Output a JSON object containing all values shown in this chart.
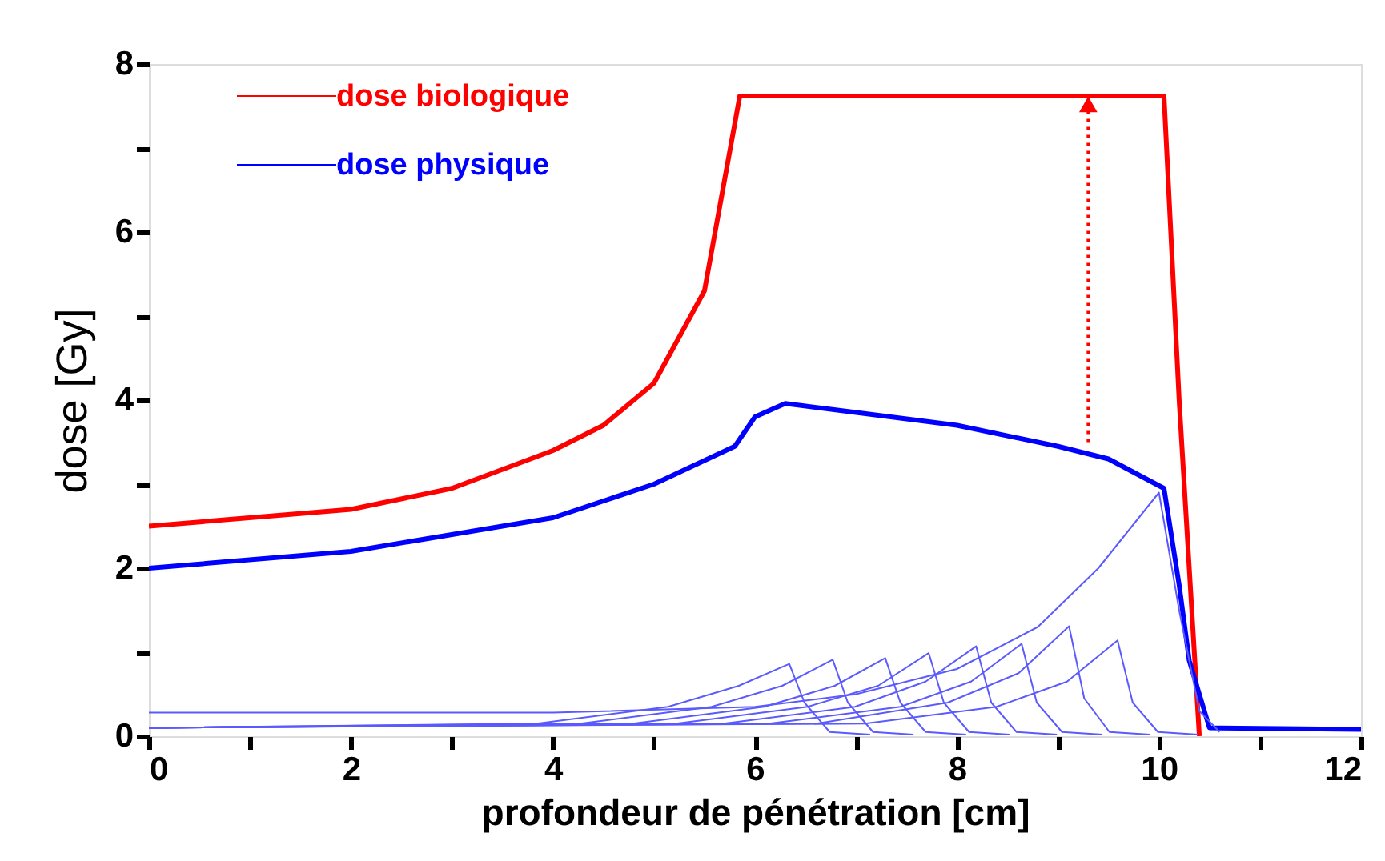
{
  "chart_data": {
    "type": "line",
    "xlabel": "profondeur de pénétration [cm]",
    "ylabel": "dose [Gy]",
    "xlim": [
      0,
      12
    ],
    "ylim": [
      0,
      8
    ],
    "xticks": [
      0,
      {
        "value": 1,
        "label": null
      },
      2,
      {
        "value": 3,
        "label": null
      },
      4,
      {
        "value": 5,
        "label": null
      },
      6,
      {
        "value": 7,
        "label": null
      },
      8,
      {
        "value": 9,
        "label": null
      },
      10,
      {
        "value": 11,
        "label": null
      },
      12
    ],
    "yticks": [
      0,
      {
        "value": 1,
        "label": null
      },
      2,
      {
        "value": 3,
        "label": null
      },
      4,
      {
        "value": 5,
        "label": null
      },
      6,
      {
        "value": 7,
        "label": null
      },
      8
    ],
    "grid": false,
    "legend": "top left",
    "series": [
      {
        "name": "dose biologique",
        "color": "#ff0000",
        "x": [
          0,
          2,
          3,
          4,
          4.5,
          5,
          5.5,
          5.85,
          10.05,
          10.2,
          10.4
        ],
        "values": [
          2.5,
          2.7,
          2.95,
          3.4,
          3.7,
          4.2,
          5.3,
          7.62,
          7.62,
          4.0,
          0
        ]
      },
      {
        "name": "dose physique",
        "color": "#0000ff",
        "x": [
          0,
          2,
          4,
          5,
          5.8,
          6.0,
          6.3,
          8,
          9,
          9.5,
          10.05,
          10.2,
          10.3,
          10.5,
          12
        ],
        "values": [
          2.0,
          2.2,
          2.6,
          3.0,
          3.45,
          3.8,
          3.96,
          3.7,
          3.45,
          3.3,
          2.95,
          1.8,
          0.9,
          0.1,
          0.08
        ]
      },
      {
        "color": "#5a5aff",
        "x": [
          0,
          3.84,
          5.14,
          5.84,
          6.34,
          6.49,
          6.74,
          7.14
        ],
        "values": [
          0.1,
          0.15,
          0.35,
          0.6,
          0.86,
          0.4,
          0.05,
          0.02
        ]
      },
      {
        "color": "#5a5aff",
        "x": [
          0,
          4.27,
          5.57,
          6.27,
          6.77,
          6.92,
          7.17,
          7.57
        ],
        "values": [
          0.1,
          0.15,
          0.35,
          0.6,
          0.91,
          0.4,
          0.05,
          0.02
        ]
      },
      {
        "color": "#5a5aff",
        "x": [
          0,
          4.79,
          6.09,
          6.79,
          7.29,
          7.44,
          7.69,
          8.09
        ],
        "values": [
          0.1,
          0.15,
          0.35,
          0.6,
          0.93,
          0.4,
          0.05,
          0.02
        ]
      },
      {
        "color": "#5a5aff",
        "x": [
          0,
          5.22,
          6.52,
          7.22,
          7.72,
          7.87,
          8.12,
          8.52
        ],
        "values": [
          0.1,
          0.15,
          0.35,
          0.6,
          0.99,
          0.4,
          0.05,
          0.02
        ]
      },
      {
        "color": "#5a5aff",
        "x": [
          0,
          5.69,
          6.99,
          7.69,
          8.19,
          8.34,
          8.59,
          8.99
        ],
        "values": [
          0.1,
          0.15,
          0.35,
          0.65,
          1.07,
          0.4,
          0.05,
          0.02
        ]
      },
      {
        "color": "#5a5aff",
        "x": [
          0,
          6.14,
          7.44,
          8.14,
          8.64,
          8.79,
          9.04,
          9.44
        ],
        "values": [
          0.1,
          0.15,
          0.35,
          0.65,
          1.1,
          0.4,
          0.05,
          0.02
        ]
      },
      {
        "color": "#5a5aff",
        "x": [
          0,
          6.61,
          7.91,
          8.61,
          9.11,
          9.26,
          9.51,
          9.91
        ],
        "values": [
          0.1,
          0.15,
          0.4,
          0.75,
          1.31,
          0.45,
          0.05,
          0.02
        ]
      },
      {
        "color": "#5a5aff",
        "x": [
          0,
          7.09,
          8.39,
          9.09,
          9.59,
          9.74,
          9.99,
          10.39
        ],
        "values": [
          0.1,
          0.15,
          0.35,
          0.65,
          1.14,
          0.4,
          0.05,
          0.02
        ]
      },
      {
        "color": "#5a5aff",
        "x": [
          0,
          4,
          6,
          7,
          8,
          8.8,
          9.4,
          9.8,
          10.0,
          10.2,
          10.4,
          10.6
        ],
        "values": [
          0.28,
          0.28,
          0.35,
          0.5,
          0.8,
          1.3,
          2.0,
          2.6,
          2.9,
          1.5,
          0.3,
          0.05
        ]
      },
      {
        "color": "#ff0000",
        "line_style": "dotted",
        "marker": "triangle",
        "x": [
          9.3,
          9.3
        ],
        "values": [
          3.5,
          7.52
        ]
      }
    ]
  }
}
